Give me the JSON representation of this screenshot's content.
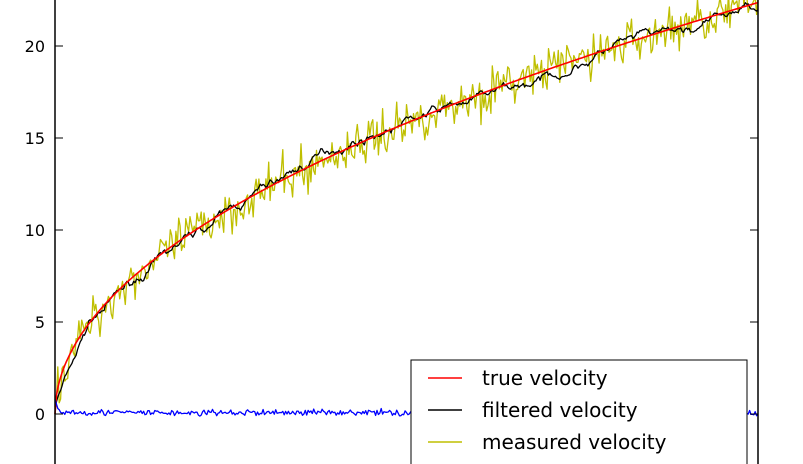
{
  "chart_data": {
    "type": "line",
    "title": "",
    "xlabel": "",
    "ylabel": "",
    "x_range": [
      0,
      500
    ],
    "ylim": [
      -2.5,
      22.5
    ],
    "yticks": [
      0,
      5,
      10,
      15,
      20
    ],
    "ytick_labels": [
      "0",
      "5",
      "10",
      "15",
      "20"
    ],
    "grid": false,
    "legend": {
      "placement": "lower-right",
      "entries": [
        "true velocity",
        "filtered velocity",
        "measured velocity"
      ]
    },
    "series": [
      {
        "name": "true velocity",
        "color": "#ff0000",
        "curve": "sqrt",
        "x": [
          0,
          1,
          10,
          25,
          50,
          100,
          150,
          200,
          250,
          300,
          350,
          400,
          450,
          500
        ],
        "values": [
          0.0,
          1.0,
          3.2,
          5.0,
          7.1,
          10.0,
          12.2,
          14.1,
          15.8,
          17.3,
          18.7,
          20.0,
          21.2,
          22.4
        ]
      },
      {
        "name": "filtered velocity",
        "color": "#000000",
        "curve": "follows-true-smooth",
        "x": [
          0,
          25,
          50,
          100,
          150,
          200,
          250,
          300,
          350,
          400,
          450,
          500
        ],
        "values": [
          0.5,
          5.0,
          6.8,
          9.8,
          12.3,
          14.5,
          15.9,
          17.1,
          18.2,
          20.1,
          20.7,
          22.3
        ]
      },
      {
        "name": "measured velocity",
        "color": "#bfbf00",
        "curve": "follows-true-noisy",
        "x": [
          0,
          25,
          50,
          100,
          150,
          200,
          250,
          300,
          350,
          400,
          450,
          500
        ],
        "values": [
          0.3,
          5.6,
          6.2,
          10.4,
          12.0,
          14.9,
          15.5,
          17.6,
          18.4,
          20.6,
          20.4,
          22.6
        ]
      },
      {
        "name": "",
        "color": "#0000ff",
        "curve": "near-zero-noise",
        "x": [
          0,
          2,
          5,
          100,
          200,
          300,
          400,
          500
        ],
        "values": [
          0.8,
          0.3,
          0.1,
          0.05,
          0.1,
          0.02,
          0.05,
          0.02
        ]
      }
    ]
  }
}
